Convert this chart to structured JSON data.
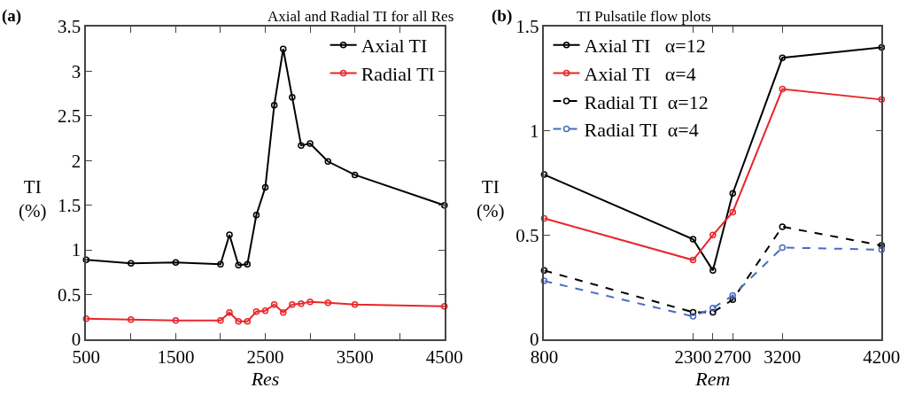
{
  "chart_data": [
    {
      "type": "line",
      "title": "Axial and Radial TI for all Res",
      "xlabel": "Res",
      "ylabel": "TI (%)",
      "annotations": [
        "(a)"
      ],
      "x": [
        500,
        1000,
        1500,
        2000,
        2100,
        2200,
        2300,
        2400,
        2500,
        2600,
        2700,
        2800,
        2900,
        3000,
        3200,
        3500,
        4500
      ],
      "series": [
        {
          "name": "Axial TI",
          "color": "#000000",
          "line_style": "solid",
          "values": [
            0.89,
            0.85,
            0.86,
            0.84,
            1.17,
            0.83,
            0.84,
            1.39,
            1.7,
            2.62,
            3.25,
            2.71,
            2.17,
            2.19,
            1.99,
            1.84,
            1.5
          ]
        },
        {
          "name": "Radial TI",
          "color": "#e8262a",
          "line_style": "solid",
          "values": [
            0.23,
            0.22,
            0.21,
            0.21,
            0.3,
            0.2,
            0.2,
            0.31,
            0.32,
            0.39,
            0.3,
            0.39,
            0.4,
            0.42,
            0.41,
            0.39,
            0.37
          ]
        }
      ],
      "xlim": [
        500,
        4500
      ],
      "xticks": [
        500,
        {
          "value": 1000,
          "label": null
        },
        1500,
        {
          "value": 2000,
          "label": null
        },
        2500,
        {
          "value": 3000,
          "label": null
        },
        3500,
        {
          "value": 4000,
          "label": null
        },
        4500
      ],
      "ylim": [
        0,
        3.5
      ],
      "yticks": [
        0,
        0.5,
        1,
        1.5,
        2,
        2.5,
        3,
        3.5
      ],
      "grid": false,
      "legend": "top right",
      "marker": "circle"
    },
    {
      "type": "line",
      "title": "TI Pulsatile flow plots",
      "xlabel": "Rem",
      "ylabel": "TI (%)",
      "annotations": [
        "(b)"
      ],
      "x": [
        800,
        2300,
        2500,
        2700,
        3200,
        4200
      ],
      "series": [
        {
          "name": "Axial TI   α=12",
          "color": "#000000",
          "line_style": "solid",
          "values": [
            0.79,
            0.48,
            0.33,
            0.7,
            1.35,
            1.4
          ]
        },
        {
          "name": "Axial TI   α=4",
          "color": "#e8262a",
          "line_style": "solid",
          "values": [
            0.58,
            0.38,
            0.5,
            0.61,
            1.2,
            1.15
          ]
        },
        {
          "name": "Radial TI  α=12",
          "color": "#000000",
          "line_style": "dashed",
          "values": [
            0.33,
            0.13,
            0.13,
            0.19,
            0.54,
            0.45
          ]
        },
        {
          "name": "Radial TI  α=4",
          "color": "#4a6bc0",
          "line_style": "dashed",
          "values": [
            0.28,
            0.11,
            0.15,
            0.21,
            0.44,
            0.43
          ]
        }
      ],
      "xlim": [
        800,
        4200
      ],
      "xticks": [
        800,
        2300,
        {
          "value": 2500,
          "label": null
        },
        2700,
        3200,
        4200
      ],
      "ylim": [
        0,
        1.5
      ],
      "yticks": [
        0,
        0.5,
        1,
        1.5
      ],
      "grid": false,
      "legend": "top left",
      "marker": "circle"
    }
  ]
}
